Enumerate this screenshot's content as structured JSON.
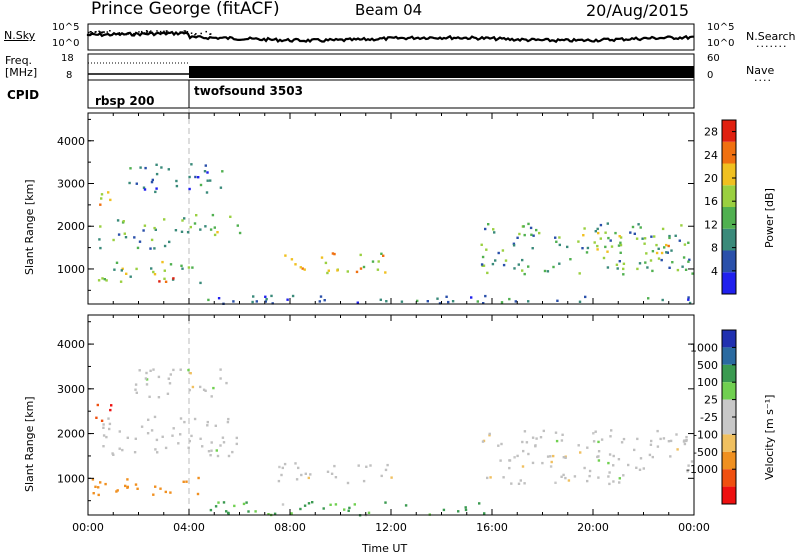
{
  "header": {
    "station": "Prince George (fitACF)",
    "beam": "Beam 04",
    "date": "20/Aug/2015"
  },
  "strip": {
    "nsky_label": "N.Sky",
    "nsky_ticks": [
      "10^5",
      "10^0"
    ],
    "nsearch_label": "N.Search",
    "nsearch_ticks": [
      "10^5",
      "10^0"
    ],
    "freq_label_1": "Freq.",
    "freq_label_2": "[MHz]",
    "freq_ticks": [
      "18",
      "8"
    ],
    "nave_label": "Nave",
    "nave_ticks": [
      "60",
      "0"
    ],
    "cpid_label": "CPID",
    "modes": [
      {
        "name": "rbsp 200",
        "start_hour": 0
      },
      {
        "name": "twofsound 3503",
        "start_hour": 4
      }
    ]
  },
  "colors": {
    "power": [
      "#2020ee",
      "#2a50aa",
      "#3a8a7a",
      "#50b050",
      "#9ad040",
      "#f0c020",
      "#f07010",
      "#e02010"
    ],
    "velocity": [
      "#ee1010",
      "#f05010",
      "#f09020",
      "#f0c060",
      "#c8c8c8",
      "#c8c8c8",
      "#70d050",
      "#3a9a50",
      "#2a6aa0",
      "#2030b0"
    ],
    "ground": "#c0c0c0"
  },
  "chart_data": [
    {
      "type": "heatmap",
      "title": "",
      "xlabel": "",
      "ylabel": "Slant Range [km]",
      "x_ticks": [
        "00:00",
        "04:00",
        "08:00",
        "12:00",
        "16:00",
        "20:00",
        "00:00"
      ],
      "xlim": [
        0,
        24
      ],
      "y_ticks": [
        1000,
        2000,
        3000,
        4000
      ],
      "ylim": [
        180,
        4650
      ],
      "colorbar_label": "Power [dB]",
      "colorbar_ticks": [
        4,
        8,
        12,
        16,
        20,
        24,
        28
      ],
      "clim": [
        0,
        30
      ],
      "echo_regions": [
        {
          "t": [
            0.2,
            1.0
          ],
          "r": [
            2300,
            2900
          ],
          "power": 20
        },
        {
          "t": [
            0.4,
            3.5
          ],
          "r": [
            1500,
            2200
          ],
          "power": 12
        },
        {
          "t": [
            3.5,
            6.0
          ],
          "r": [
            1800,
            2400
          ],
          "power": 14
        },
        {
          "t": [
            0.1,
            4.5
          ],
          "r": [
            700,
            1200
          ],
          "power": 14
        },
        {
          "t": [
            2.5,
            3.8
          ],
          "r": [
            700,
            950
          ],
          "power": 24
        },
        {
          "t": [
            1.5,
            5.5
          ],
          "r": [
            2800,
            3500
          ],
          "power": 8
        },
        {
          "t": [
            7.5,
            12.0
          ],
          "r": [
            900,
            1400
          ],
          "power": 20
        },
        {
          "t": [
            15.5,
            24.0
          ],
          "r": [
            900,
            2100
          ],
          "power": 12
        },
        {
          "t": [
            19.5,
            23.0
          ],
          "r": [
            1400,
            1900
          ],
          "power": 18
        },
        {
          "t": [
            4.0,
            24.0
          ],
          "r": [
            200,
            400
          ],
          "power": 8
        }
      ]
    },
    {
      "type": "heatmap",
      "title": "",
      "xlabel": "Time UT",
      "ylabel": "Slant Range [km]",
      "x_ticks": [
        "00:00",
        "04:00",
        "08:00",
        "12:00",
        "16:00",
        "20:00",
        "00:00"
      ],
      "xlim": [
        0,
        24
      ],
      "y_ticks": [
        1000,
        2000,
        3000,
        4000
      ],
      "ylim": [
        180,
        4650
      ],
      "colorbar_label": "Velocity [m s⁻¹]",
      "colorbar_ticks": [
        1000,
        500,
        100,
        25,
        -25,
        -100,
        -500,
        -1000
      ],
      "echo_regions": [
        {
          "t": [
            0.2,
            1.0
          ],
          "r": [
            2300,
            2900
          ],
          "velocity": -1000
        },
        {
          "t": [
            0.4,
            6.0
          ],
          "r": [
            1500,
            2400
          ],
          "velocity": 0
        },
        {
          "t": [
            1.5,
            5.5
          ],
          "r": [
            2800,
            3500
          ],
          "velocity": 0
        },
        {
          "t": [
            0.1,
            4.5
          ],
          "r": [
            600,
            1100
          ],
          "velocity": -200
        },
        {
          "t": [
            7.5,
            12.0
          ],
          "r": [
            900,
            1400
          ],
          "velocity": 0
        },
        {
          "t": [
            15.5,
            24.0
          ],
          "r": [
            900,
            2100
          ],
          "velocity": 0
        },
        {
          "t": [
            4.0,
            16.0
          ],
          "r": [
            200,
            500
          ],
          "velocity": 100
        }
      ]
    }
  ],
  "axis_labels": {
    "time": "Time UT"
  }
}
